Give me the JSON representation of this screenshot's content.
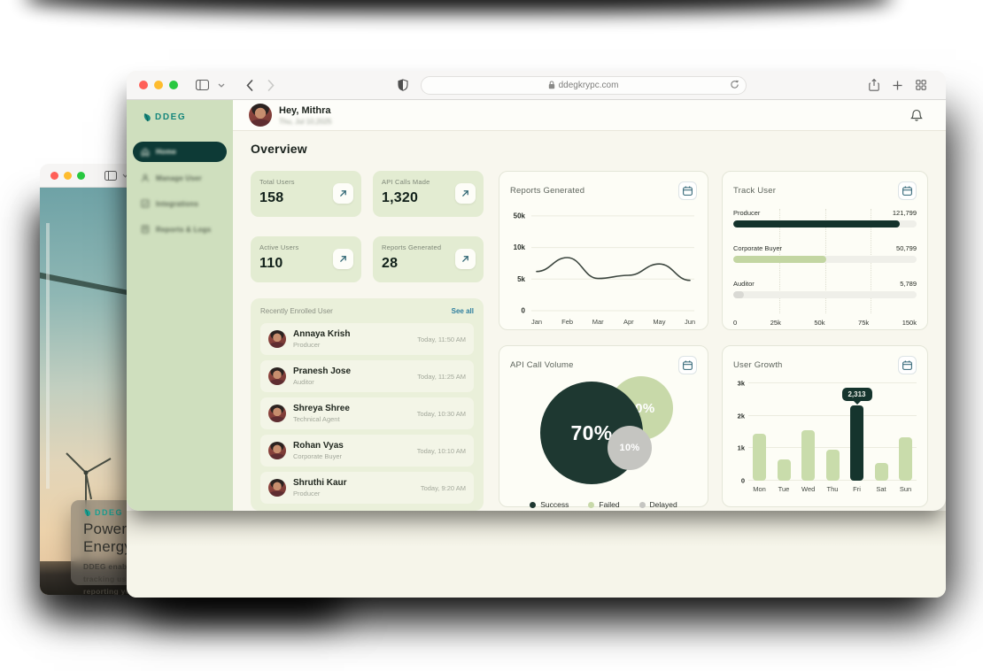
{
  "browser": {
    "url": "ddegkrypc.com",
    "toolbar_icon_names": [
      "sidebar-toggle-icon",
      "chevron-down-icon",
      "back-icon",
      "forward-icon",
      "privacy-shield-icon",
      "lock-icon",
      "reload-icon",
      "share-icon",
      "new-tab-icon",
      "tab-overview-icon"
    ]
  },
  "back_window": {
    "brand": "DDEG",
    "headline": "Powering Trust in Renewable Energy",
    "body": "DDEG enables secure, traceable, and tokenized energy tracking using blockchain. From GoO issuance to ESG reporting your clean energy journey starts here."
  },
  "app": {
    "brand": "DDEG",
    "sidebar": {
      "items": [
        {
          "label": "Home",
          "icon": "home-icon",
          "active": true
        },
        {
          "label": "Manage User",
          "icon": "manage-user-icon",
          "active": false
        },
        {
          "label": "Integrations",
          "icon": "integrations-icon",
          "active": false
        },
        {
          "label": "Reports & Logs",
          "icon": "reports-logs-icon",
          "active": false
        }
      ]
    },
    "header": {
      "greeting": "Hey, Mithra",
      "date": "Thu, Jul 10,2025",
      "bell_icon": "bell-icon"
    },
    "page_title": "Overview",
    "stats": [
      {
        "label": "Total Users",
        "value": "158",
        "icon": "arrow-up-right-icon"
      },
      {
        "label": "API Calls Made",
        "value": "1,320",
        "icon": "arrow-up-right-icon"
      },
      {
        "label": "Active Users",
        "value": "110",
        "icon": "arrow-up-right-icon"
      },
      {
        "label": "Reports Generated",
        "value": "28",
        "icon": "arrow-up-right-icon"
      }
    ],
    "enrolled": {
      "title": "Recently Enrolled User",
      "see_all": "See all",
      "rows": [
        {
          "name": "Annaya Krish",
          "role": "Producer",
          "time": "Today, 11:50 AM"
        },
        {
          "name": "Pranesh Jose",
          "role": "Auditor",
          "time": "Today, 11:25 AM"
        },
        {
          "name": "Shreya Shree",
          "role": "Technical Agent",
          "time": "Today, 10:30 AM"
        },
        {
          "name": "Rohan Vyas",
          "role": "Corporate Buyer",
          "time": "Today, 10:10 AM"
        },
        {
          "name": "Shruthi Kaur",
          "role": "Producer",
          "time": "Today, 9:20 AM"
        }
      ]
    }
  },
  "chart_data": [
    {
      "id": "reports_generated",
      "type": "line",
      "title": "Reports Generated",
      "x": [
        "Jan",
        "Feb",
        "Mar",
        "Apr",
        "May",
        "Jun"
      ],
      "values": [
        6200,
        8400,
        5100,
        5600,
        7400,
        4800
      ],
      "yticks": [
        "0",
        "5k",
        "10k",
        "50k"
      ],
      "ytick_values": [
        0,
        5000,
        10000,
        50000
      ],
      "grid": true,
      "line_color": "#3c463f"
    },
    {
      "id": "track_user",
      "type": "hbar",
      "title": "Track User",
      "categories": [
        "Producer",
        "Corporate Buyer",
        "Auditor"
      ],
      "values": [
        121799,
        50799,
        5789
      ],
      "value_labels": [
        "121,799",
        "50,799",
        "5,789"
      ],
      "bar_colors": [
        "#14332c",
        "#c3d6a2",
        "#d9d9d4"
      ],
      "xticks": [
        "0",
        "25k",
        "50k",
        "75k",
        "150k"
      ],
      "xtick_values": [
        0,
        25000,
        50000,
        75000,
        150000
      ]
    },
    {
      "id": "api_call_volume",
      "type": "bubble",
      "title": "API Call Volume",
      "slices": [
        {
          "label": "Success",
          "pct": 70,
          "color": "#1e3831"
        },
        {
          "label": "Failed",
          "pct": 20,
          "color": "#c8d9a9"
        },
        {
          "label": "Delayed",
          "pct": 10,
          "color": "#c5c5c1"
        }
      ],
      "legend_position": "bottom"
    },
    {
      "id": "user_growth",
      "type": "bar",
      "title": "User Growth",
      "categories": [
        "Mon",
        "Tue",
        "Wed",
        "Thu",
        "Fri",
        "Sat",
        "Sun"
      ],
      "values": [
        1450,
        650,
        1550,
        950,
        2313,
        550,
        1350
      ],
      "yticks": [
        "0",
        "1k",
        "2k",
        "3k"
      ],
      "ylim": [
        0,
        3000
      ],
      "highlight_index": 4,
      "highlight_label": "2,313",
      "bar_color": "#c9dcab",
      "highlight_color": "#15342d"
    }
  ],
  "colors": {
    "accent_teal": "#17877c",
    "link_blue": "#2e7e9e",
    "dark_green": "#0d3a36",
    "light_green": "#c9dcab",
    "sidebar_green": "#cfdfbe",
    "card_green": "#e3ecd2",
    "cream": "#f8f7ee",
    "traffic_red": "#ff5f57",
    "traffic_yellow": "#febc2e",
    "traffic_green": "#28c840"
  }
}
